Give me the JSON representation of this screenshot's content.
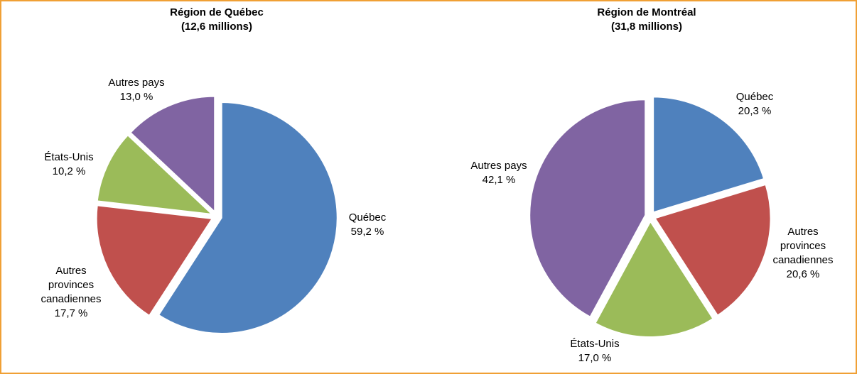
{
  "chart_data": [
    {
      "type": "pie",
      "title": "Région de Québec",
      "subtitle": "(12,6 millions)",
      "categories": [
        "Québec",
        "Autres provinces canadiennes",
        "États-Unis",
        "Autres pays"
      ],
      "values": [
        59.2,
        17.7,
        10.2,
        13.0
      ],
      "value_labels": [
        "59,2 %",
        "17,7 %",
        "10,2 %",
        "13,0 %"
      ],
      "colors": [
        "#4f81bd",
        "#c0504d",
        "#9bbb59",
        "#8064a2"
      ]
    },
    {
      "type": "pie",
      "title": "Région de Montréal",
      "subtitle": "(31,8 millions)",
      "categories": [
        "Québec",
        "Autres provinces canadiennes",
        "États-Unis",
        "Autres pays"
      ],
      "values": [
        20.3,
        20.6,
        17.0,
        42.1
      ],
      "value_labels": [
        "20,3 %",
        "20,6 %",
        "17,0 %",
        "42,1 %"
      ],
      "colors": [
        "#4f81bd",
        "#c0504d",
        "#9bbb59",
        "#8064a2"
      ]
    }
  ]
}
